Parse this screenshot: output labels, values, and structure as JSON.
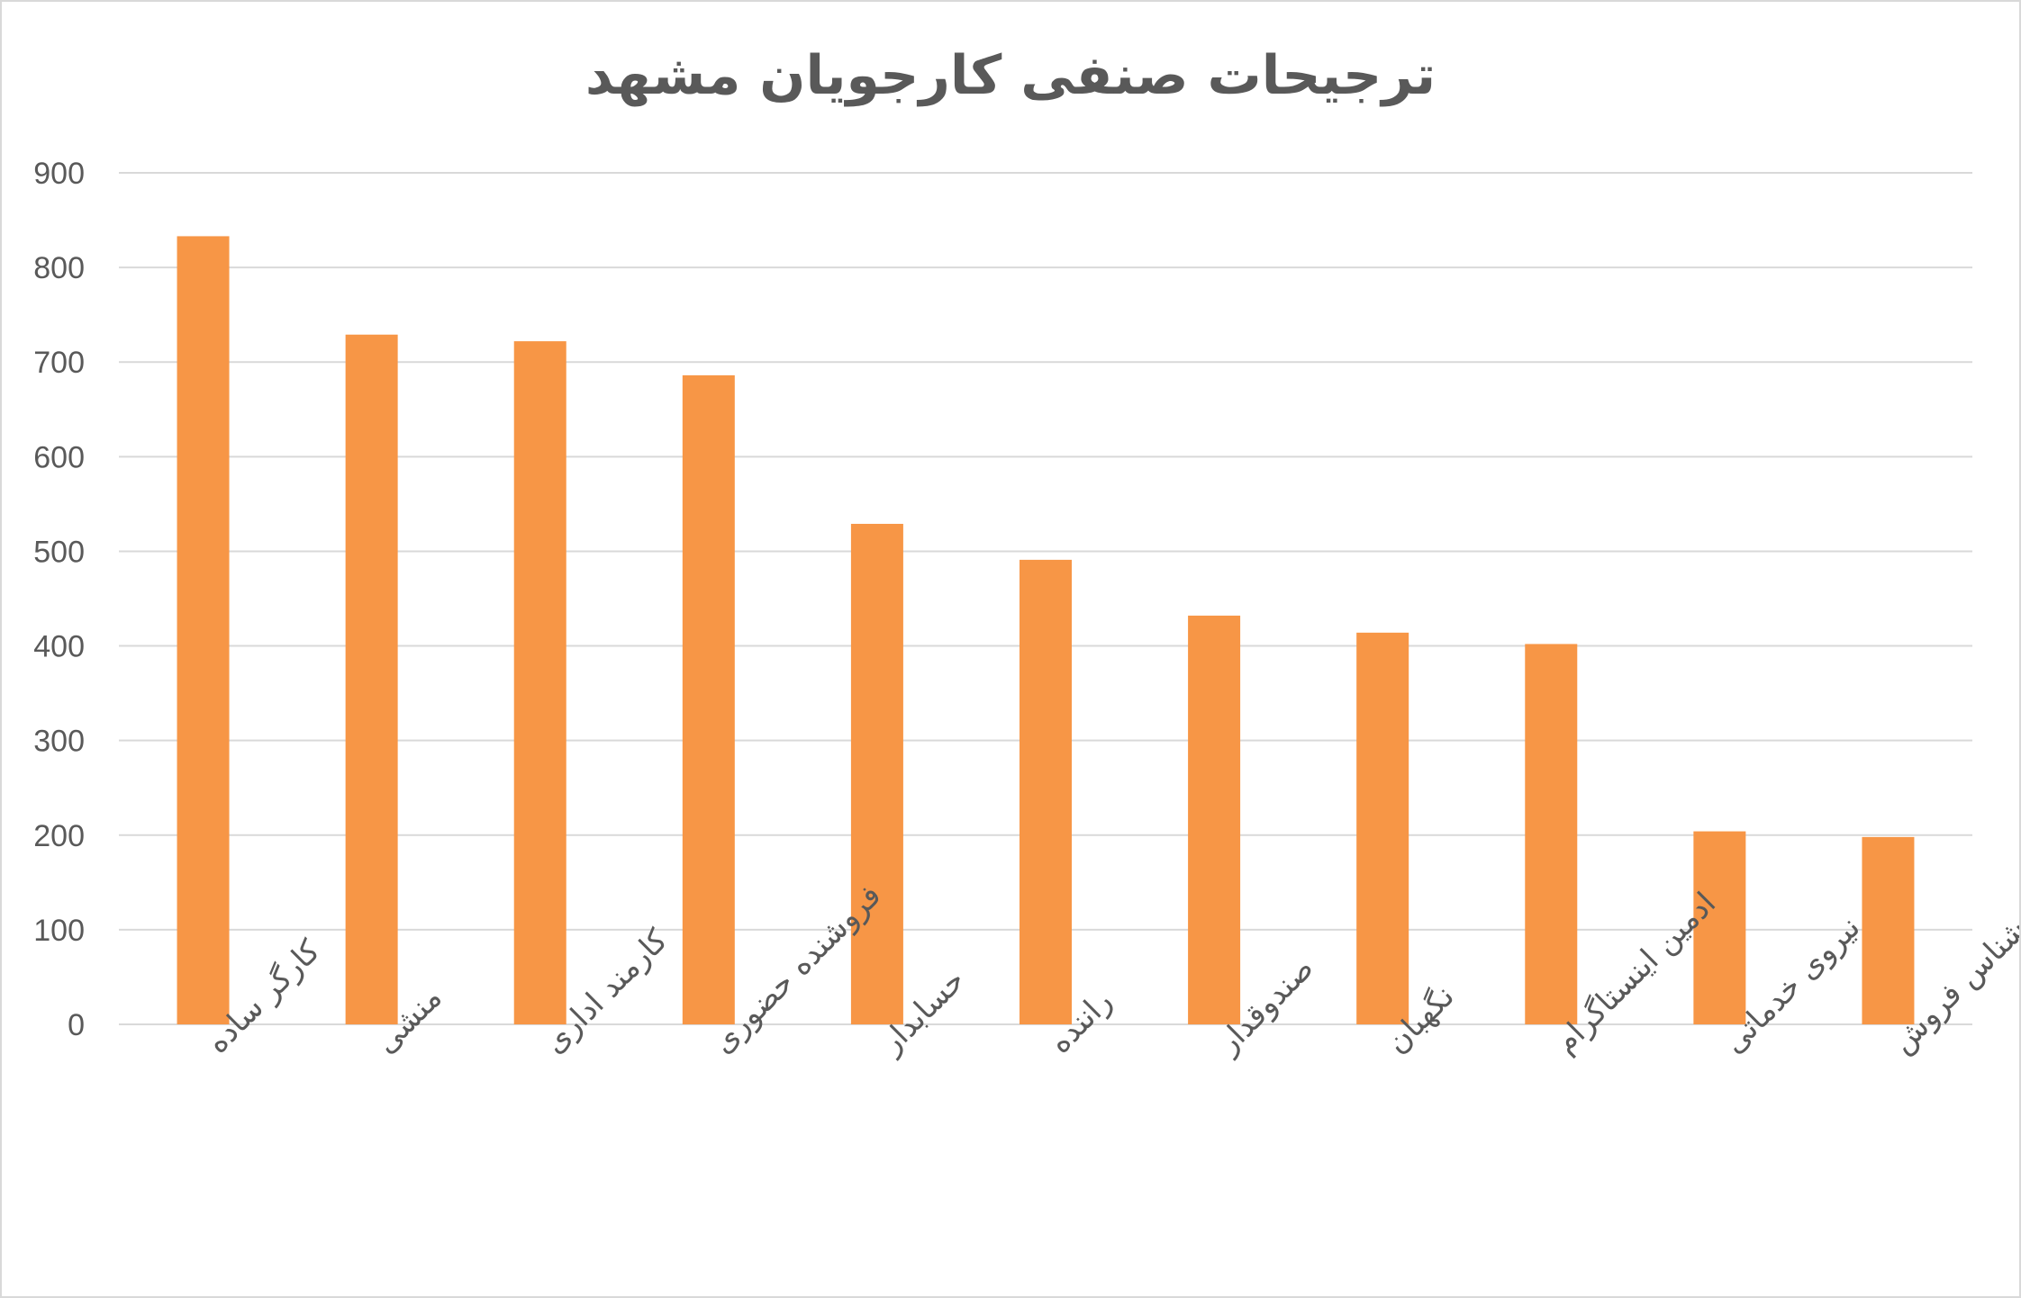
{
  "chart_data": {
    "type": "bar",
    "title": "ترجیحات صنفی کارجویان مشهد",
    "categories": [
      "کارگر ساده",
      "منشی",
      "کارمند اداری",
      "فروشنده حضوری",
      "حسابدار",
      "راننده",
      "صندوقدار",
      "نگهبان",
      "ادمین اینستاگرام",
      "نیروی خدماتی",
      "کارشناس فروش"
    ],
    "values": [
      833,
      729,
      722,
      686,
      529,
      491,
      432,
      414,
      402,
      204,
      198
    ],
    "xlabel": "",
    "ylabel": "",
    "ylim": [
      0,
      900
    ],
    "yticks": [
      0,
      100,
      200,
      300,
      400,
      500,
      600,
      700,
      800,
      900
    ],
    "grid": true,
    "legend": "none",
    "bar_color": "#F79646"
  }
}
